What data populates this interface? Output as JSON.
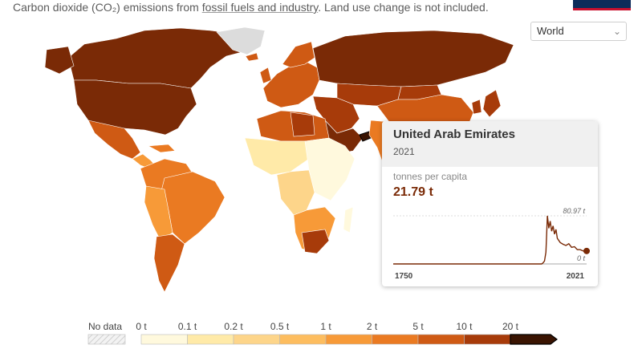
{
  "subtitle": {
    "prefix": "Carbon dioxide (CO₂) emissions from",
    "link": "fossil fuels and industry",
    "suffix": ". Land use change is not included."
  },
  "region_select": {
    "value": "World"
  },
  "map": {
    "colors": {
      "ocean": "#ffffff",
      "land_border": "#ffffff",
      "bin_0": "#fff9dd",
      "bin_1": "#ffeaa8",
      "bin_2": "#fdd58a",
      "bin_3": "#fdbd5f",
      "bin_4": "#f79a38",
      "bin_5": "#ea7a22",
      "bin_6": "#cf5a14",
      "bin_7": "#a73b0a",
      "bin_8": "#7a2a06",
      "highlight": "#3a1402",
      "no_data": "#dcdcdc"
    }
  },
  "tooltip": {
    "country": "United Arab Emirates",
    "year": "2021",
    "unit_label": "tonnes per capita",
    "value": "21.79 t",
    "chart": {
      "x_start": "1750",
      "x_end": "2021",
      "y_max_label": "80.97 t",
      "y_min_label": "0 t",
      "line_color": "#7a2a06"
    }
  },
  "legend": {
    "no_data_label": "No data",
    "bins": [
      "0 t",
      "0.1 t",
      "0.2 t",
      "0.5 t",
      "1 t",
      "2 t",
      "5 t",
      "10 t",
      "20 t"
    ]
  },
  "chart_data": {
    "type": "line",
    "series": [
      {
        "x": [
          1750,
          1958,
          1960,
          1962,
          1964,
          1966,
          1968,
          1970,
          1972,
          1974,
          1976,
          1978,
          1980,
          1984,
          1988,
          1992,
          1996,
          2000,
          2004,
          2008,
          2012,
          2016,
          2019,
          2021
        ],
        "y": [
          0,
          0,
          2,
          5,
          20,
          81,
          60,
          72,
          55,
          64,
          50,
          58,
          43,
          36,
          33,
          31,
          34,
          28,
          29,
          24,
          24,
          22,
          20,
          21.79
        ]
      }
    ],
    "xlim": [
      1750,
      2021
    ],
    "ylim": [
      0,
      80.97
    ]
  }
}
